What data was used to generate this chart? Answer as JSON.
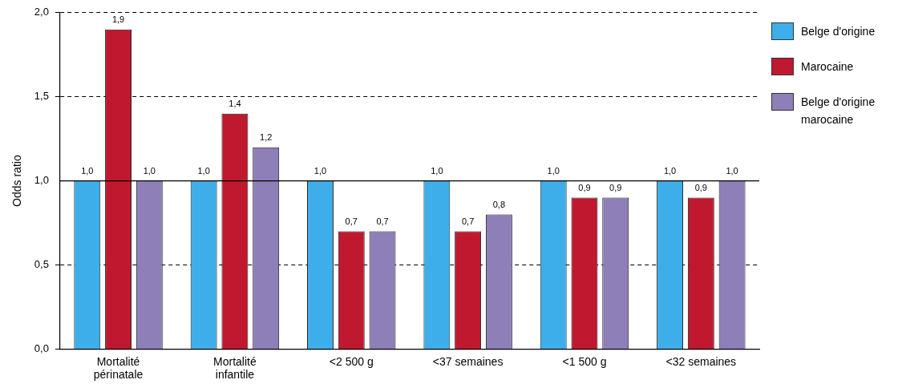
{
  "chart_data": {
    "type": "bar",
    "ylabel": "Odds ratio",
    "categories": [
      "Mortalité\npérinatale",
      "Mortalité\ninfantile",
      "<2 500 g",
      "<37 semaines",
      "<1 500 g",
      "<32 semaines"
    ],
    "series": [
      {
        "name": "Belge d'origine",
        "color": "#3daee9",
        "values": [
          1.0,
          1.0,
          1.0,
          1.0,
          1.0,
          1.0
        ],
        "value_labels": [
          "1,0",
          "1,0",
          "1,0",
          "1,0",
          "1,0",
          "1,0"
        ]
      },
      {
        "name": "Marocaine",
        "color": "#c0182f",
        "values": [
          1.9,
          1.4,
          0.7,
          0.7,
          0.9,
          0.9
        ],
        "value_labels": [
          "1,9",
          "1,4",
          "0,7",
          "0,7",
          "0,9",
          "0,9"
        ]
      },
      {
        "name": "Belge d'origine marocaine",
        "color": "#8e7fb8",
        "values": [
          1.0,
          1.2,
          0.7,
          0.8,
          0.9,
          1.0
        ],
        "value_labels": [
          "1,0",
          "1,2",
          "0,7",
          "0,8",
          "0,9",
          "1,0"
        ]
      }
    ],
    "ylim": [
      0,
      2
    ],
    "yticks": [
      {
        "value": 0,
        "label": "0,0"
      },
      {
        "value": 0.5,
        "label": "0,5"
      },
      {
        "value": 1,
        "label": "1,0"
      },
      {
        "value": 1.5,
        "label": "1,5"
      },
      {
        "value": 2,
        "label": "2,0"
      }
    ],
    "grid": "y",
    "legend": "top right",
    "ref_lines": [
      {
        "axis": "y",
        "value": 1,
        "line_style": "solid",
        "color": "#000000"
      }
    ]
  }
}
